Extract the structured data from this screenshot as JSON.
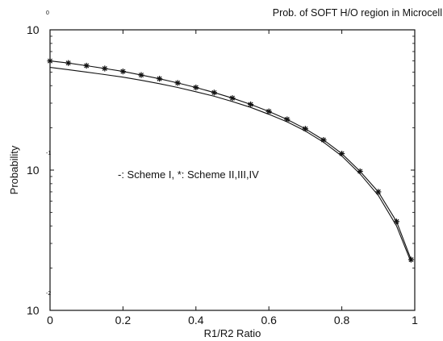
{
  "chart_data": {
    "type": "line",
    "title": "Prob. of SOFT H/O region in Microcell",
    "xlabel": "R1/R2 Ratio",
    "ylabel": "Probability",
    "annotation": "-: Scheme I, *: Scheme II,III,IV",
    "xlim": [
      0,
      1
    ],
    "ylim": [
      0.01,
      1
    ],
    "yscale": "log",
    "grid": false,
    "x_ticks": [
      {
        "value": 0,
        "label": "0"
      },
      {
        "value": 0.2,
        "label": "0.2"
      },
      {
        "value": 0.4,
        "label": "0.4"
      },
      {
        "value": 0.6,
        "label": "0.6"
      },
      {
        "value": 0.8,
        "label": "0.8"
      },
      {
        "value": 1,
        "label": "1"
      }
    ],
    "y_ticks": [
      {
        "value": 1,
        "base": "10",
        "exp": "0"
      },
      {
        "value": 0.1,
        "base": "10",
        "exp": "-1"
      },
      {
        "value": 0.01,
        "base": "10",
        "exp": "-2"
      }
    ],
    "series": [
      {
        "marker": "none",
        "x": [
          0,
          0.05,
          0.1,
          0.15,
          0.2,
          0.25,
          0.3,
          0.35,
          0.4,
          0.45,
          0.5,
          0.55,
          0.6,
          0.65,
          0.7,
          0.75,
          0.8,
          0.85,
          0.9,
          0.95,
          0.99
        ],
        "y": [
          0.54,
          0.52,
          0.5,
          0.48,
          0.46,
          0.437,
          0.413,
          0.388,
          0.362,
          0.336,
          0.308,
          0.28,
          0.25,
          0.221,
          0.19,
          0.158,
          0.126,
          0.094,
          0.066,
          0.04,
          0.022
        ]
      },
      {
        "marker": "*",
        "x": [
          0,
          0.05,
          0.1,
          0.15,
          0.2,
          0.25,
          0.3,
          0.35,
          0.4,
          0.45,
          0.5,
          0.55,
          0.6,
          0.65,
          0.7,
          0.75,
          0.8,
          0.85,
          0.9,
          0.95,
          0.99
        ],
        "y": [
          0.6,
          0.58,
          0.555,
          0.53,
          0.505,
          0.476,
          0.448,
          0.418,
          0.388,
          0.357,
          0.326,
          0.294,
          0.262,
          0.23,
          0.197,
          0.164,
          0.131,
          0.098,
          0.07,
          0.043,
          0.023
        ]
      }
    ]
  }
}
